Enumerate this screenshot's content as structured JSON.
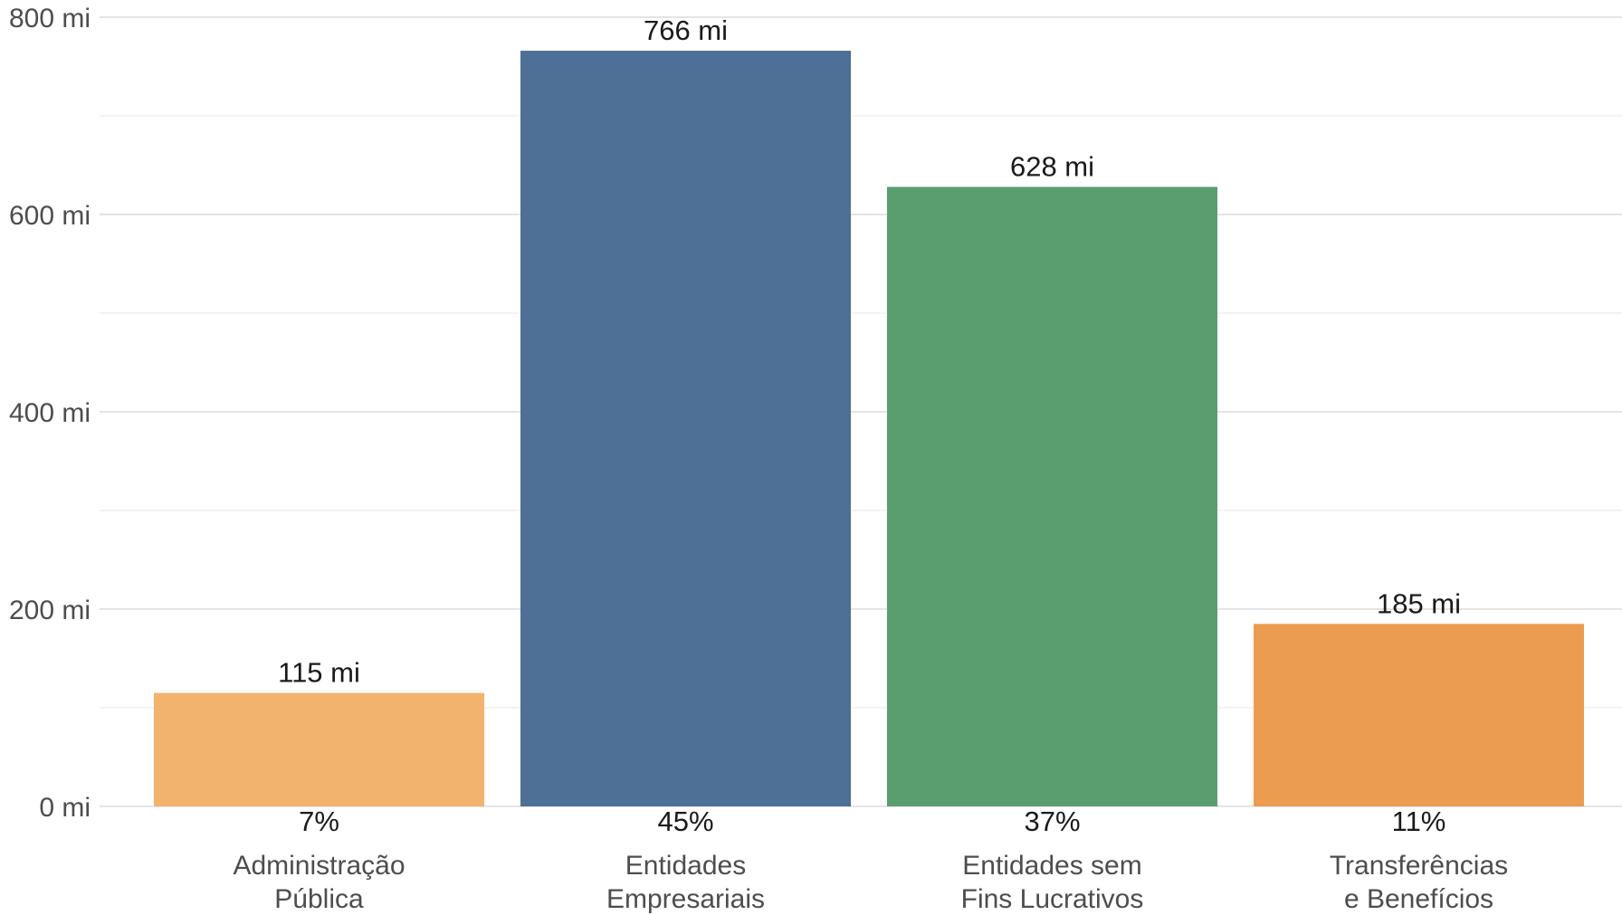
{
  "chart_data": {
    "type": "bar",
    "categories": [
      [
        "Administração",
        "Pública"
      ],
      [
        "Entidades",
        "Empresariais"
      ],
      [
        "Entidades sem",
        "Fins Lucrativos"
      ],
      [
        "Transferências",
        "e Benefícios"
      ]
    ],
    "values": [
      115,
      766,
      628,
      185
    ],
    "value_labels": [
      "115 mi",
      "766 mi",
      "628 mi",
      "185 mi"
    ],
    "percent_labels": [
      "7%",
      "45%",
      "37%",
      "11%"
    ],
    "colors": [
      "#f2b36e",
      "#4e6f96",
      "#5a9e6f",
      "#eb9c50"
    ],
    "ylim": [
      0,
      800
    ],
    "yticks": [
      {
        "value": 0,
        "label": "0 mi"
      },
      {
        "value": 200,
        "label": "200 mi"
      },
      {
        "value": 400,
        "label": "400 mi"
      },
      {
        "value": 600,
        "label": "600 mi"
      },
      {
        "value": 800,
        "label": "800 mi"
      }
    ],
    "minor_gridlines": [
      100,
      300,
      500,
      700
    ],
    "grid": true,
    "legend": "none"
  }
}
